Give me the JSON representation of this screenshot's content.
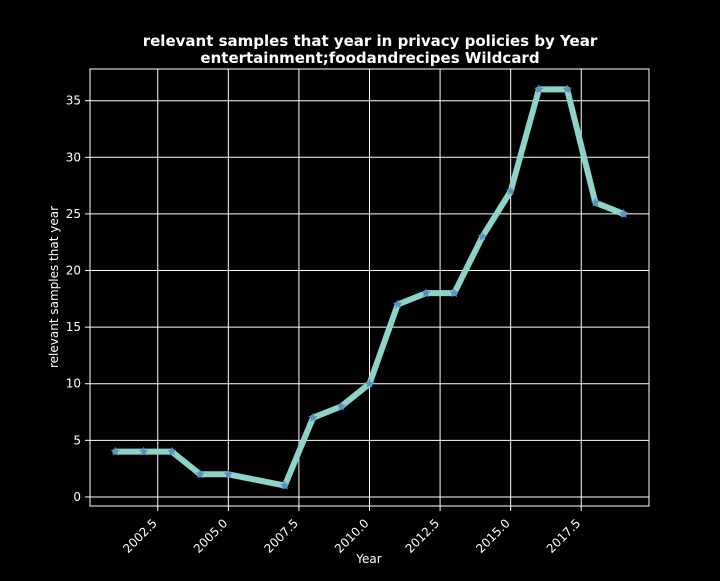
{
  "chart_data": {
    "type": "line",
    "title": "relevant samples that year in privacy policies by Year",
    "subtitle": "entertainment;foodandrecipes Wildcard",
    "xlabel": "Year",
    "ylabel": "relevant samples that year",
    "xlim": [
      2000.1,
      2019.9
    ],
    "ylim": [
      -0.8,
      37.8
    ],
    "x_ticks": [
      2002.5,
      2005.0,
      2007.5,
      2010.0,
      2012.5,
      2015.0,
      2017.5
    ],
    "x_tick_labels": [
      "2002.5",
      "2005.0",
      "2007.5",
      "2010.0",
      "2012.5",
      "2015.0",
      "2017.5"
    ],
    "y_ticks": [
      0,
      5,
      10,
      15,
      20,
      25,
      30,
      35
    ],
    "y_tick_labels": [
      "0",
      "5",
      "10",
      "15",
      "20",
      "25",
      "30",
      "35"
    ],
    "grid": true,
    "background": "#000000",
    "line_color": "#8dd3c7",
    "marker_color": "#5b8fc4",
    "marker": "star",
    "x": [
      2001,
      2002,
      2003,
      2004,
      2005,
      2007,
      2008,
      2009,
      2010,
      2011,
      2012,
      2013,
      2014,
      2015,
      2016,
      2017,
      2018,
      2019
    ],
    "series": [
      {
        "values": [
          4,
          4,
          4,
          2,
          2,
          1,
          7,
          8,
          10,
          17,
          18,
          18,
          23,
          27,
          36,
          36,
          26,
          25
        ]
      }
    ]
  }
}
